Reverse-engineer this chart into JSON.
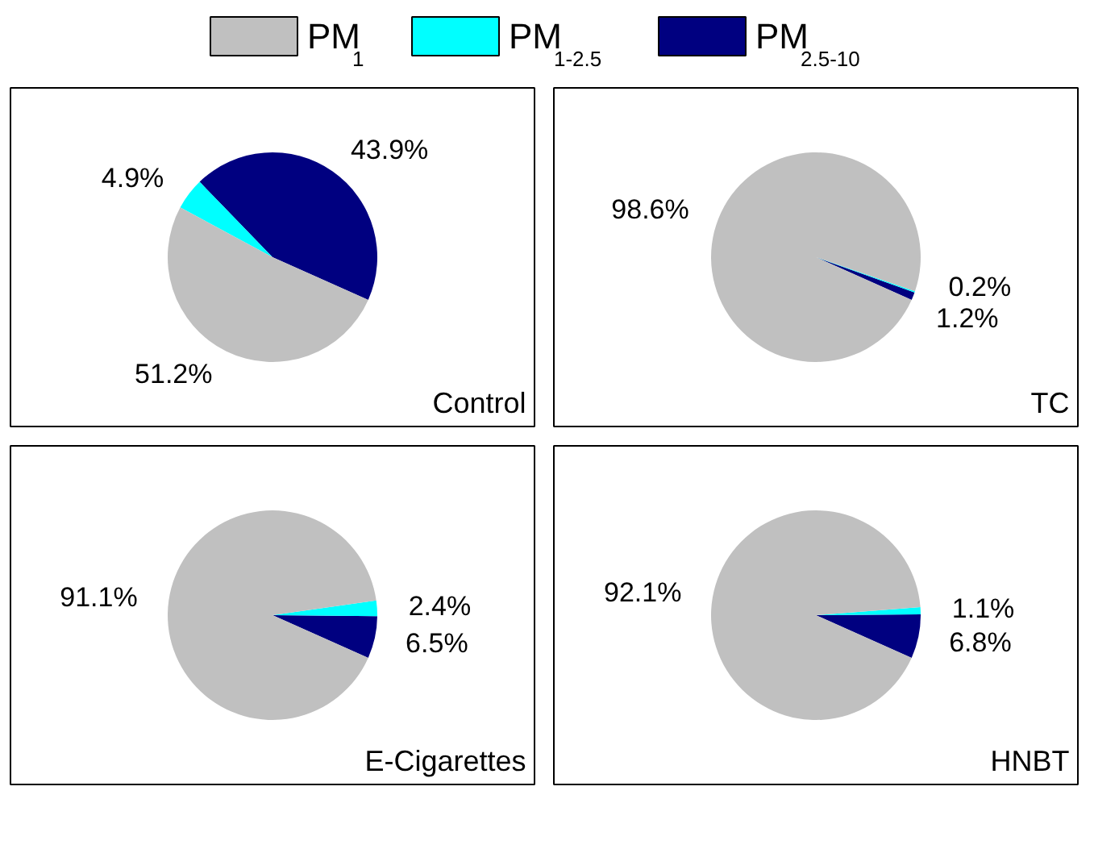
{
  "chart_data": [
    {
      "type": "pie",
      "title": "Control",
      "categories": [
        "PM$_{1}$",
        "PM$_{1-2.5}$",
        "PM$_{2.5-10}$"
      ],
      "values": [
        51.2,
        4.9,
        43.9
      ],
      "colors": [
        "#c0c0c0",
        "#00ffff",
        "#000080"
      ],
      "value_labels": [
        "51.2%",
        "4.9%",
        "43.9%"
      ],
      "legend": "top"
    },
    {
      "type": "pie",
      "title": "TC",
      "values": [
        98.6,
        0.2,
        1.2
      ],
      "colors": [
        "#c0c0c0",
        "#00ffff",
        "#000080"
      ],
      "value_labels": [
        "98.6%",
        "0.2%",
        "1.2%"
      ]
    },
    {
      "type": "pie",
      "title": "E-Cigarettes",
      "values": [
        91.1,
        2.4,
        6.5
      ],
      "colors": [
        "#c0c0c0",
        "#00ffff",
        "#000080"
      ],
      "value_labels": [
        "91.1%",
        "2.4%",
        "6.5%"
      ]
    },
    {
      "type": "pie",
      "title": "HNBT",
      "values": [
        92.1,
        1.1,
        6.8
      ],
      "colors": [
        "#c0c0c0",
        "#00ffff",
        "#000080"
      ],
      "value_labels": [
        "92.1%",
        "1.1%",
        "6.8%"
      ]
    }
  ]
}
